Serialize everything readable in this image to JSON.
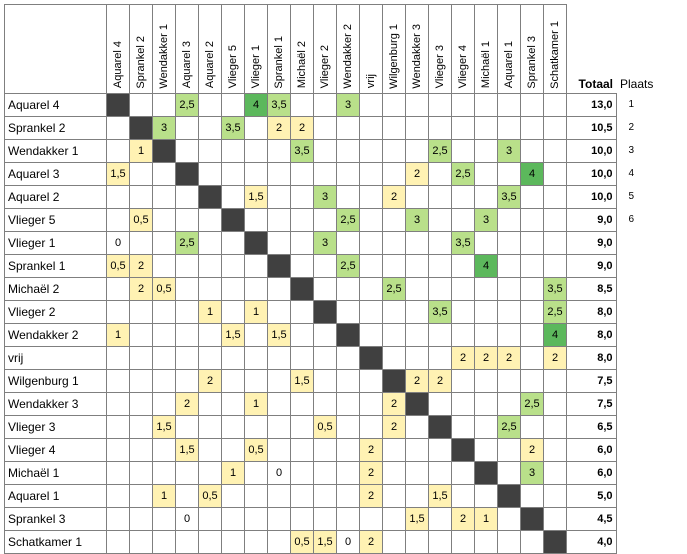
{
  "table": {
    "columns": [
      "Aquarel 4",
      "Sprankel 2",
      "Wendakker 1",
      "Aquarel 3",
      "Aquarel 2",
      "Vlieger 5",
      "Vlieger 1",
      "Sprankel 1",
      "Michaël 2",
      "Vlieger 2",
      "Wendakker 2",
      "vrij",
      "Wilgenburg 1",
      "Wendakker 3",
      "Vlieger 3",
      "Vlieger 4",
      "Michaël 1",
      "Aquarel 1",
      "Sprankel 3",
      "Schatkamer 1"
    ],
    "totaal_label": "Totaal",
    "plaats_label": "Plaats",
    "colors": {
      "diagonal": "#404040",
      "low": "#fff2b3",
      "mid": "#b9e08a",
      "high": "#5cb85c",
      "border": "#7f7f7f"
    },
    "rows": [
      {
        "name": "Aquarel 4",
        "cells": [
          "",
          "",
          "",
          "2,5",
          "",
          "",
          "4",
          "3,5",
          "",
          "",
          "3",
          "",
          "",
          "",
          "",
          "",
          "",
          "",
          "",
          ""
        ],
        "total": "13,0",
        "place": "1"
      },
      {
        "name": "Sprankel 2",
        "cells": [
          "",
          "",
          "3",
          "",
          "",
          "3,5",
          "",
          "2",
          "2",
          "",
          "",
          "",
          "",
          "",
          "",
          "",
          "",
          "",
          "",
          ""
        ],
        "total": "10,5",
        "place": "2"
      },
      {
        "name": "Wendakker 1",
        "cells": [
          "",
          "1",
          "",
          "",
          "",
          "",
          "",
          "",
          "3,5",
          "",
          "",
          "",
          "",
          "",
          "2,5",
          "",
          "",
          "3",
          "",
          ""
        ],
        "total": "10,0",
        "place": "3"
      },
      {
        "name": "Aquarel 3",
        "cells": [
          "1,5",
          "",
          "",
          "",
          "",
          "",
          "",
          "",
          "",
          "",
          "",
          "",
          "",
          "2",
          "",
          "2,5",
          "",
          "",
          "4",
          ""
        ],
        "total": "10,0",
        "place": "4"
      },
      {
        "name": "Aquarel 2",
        "cells": [
          "",
          "",
          "",
          "",
          "",
          "",
          "1,5",
          "",
          "",
          "3",
          "",
          "",
          "2",
          "",
          "",
          "",
          "",
          "3,5",
          "",
          ""
        ],
        "total": "10,0",
        "place": "5"
      },
      {
        "name": "Vlieger 5",
        "cells": [
          "",
          "0,5",
          "",
          "",
          "",
          "",
          "",
          "",
          "",
          "",
          "2,5",
          "",
          "",
          "3",
          "",
          "",
          "3",
          "",
          "",
          ""
        ],
        "total": "9,0",
        "place": "6"
      },
      {
        "name": "Vlieger 1",
        "cells": [
          "0",
          "",
          "",
          "2,5",
          "",
          "",
          "",
          "",
          "",
          "3",
          "",
          "",
          "",
          "",
          "",
          "3,5",
          "",
          "",
          "",
          ""
        ],
        "total": "9,0",
        "place": ""
      },
      {
        "name": "Sprankel 1",
        "cells": [
          "0,5",
          "2",
          "",
          "",
          "",
          "",
          "",
          "",
          "",
          "",
          "2,5",
          "",
          "",
          "",
          "",
          "",
          "4",
          "",
          "",
          ""
        ],
        "total": "9,0",
        "place": ""
      },
      {
        "name": "Michaël 2",
        "cells": [
          "",
          "2",
          "0,5",
          "",
          "",
          "",
          "",
          "",
          "",
          "",
          "",
          "",
          "2,5",
          "",
          "",
          "",
          "",
          "",
          "",
          "3,5"
        ],
        "total": "8,5",
        "place": ""
      },
      {
        "name": "Vlieger 2",
        "cells": [
          "",
          "",
          "",
          "",
          "1",
          "",
          "1",
          "",
          "",
          "",
          "",
          "",
          "",
          "",
          "3,5",
          "",
          "",
          "",
          "",
          "2,5"
        ],
        "total": "8,0",
        "place": ""
      },
      {
        "name": "Wendakker 2",
        "cells": [
          "1",
          "",
          "",
          "",
          "",
          "1,5",
          "",
          "1,5",
          "",
          "",
          "",
          "",
          "",
          "",
          "",
          "",
          "",
          "",
          "",
          "4"
        ],
        "total": "8,0",
        "place": ""
      },
      {
        "name": "vrij",
        "cells": [
          "",
          "",
          "",
          "",
          "",
          "",
          "",
          "",
          "",
          "",
          "",
          "",
          "",
          "",
          "",
          "2",
          "2",
          "2",
          "",
          "2"
        ],
        "total": "8,0",
        "place": ""
      },
      {
        "name": "Wilgenburg 1",
        "cells": [
          "",
          "",
          "",
          "",
          "2",
          "",
          "",
          "",
          "1,5",
          "",
          "",
          "",
          "",
          "2",
          "2",
          "",
          "",
          "",
          "",
          ""
        ],
        "total": "7,5",
        "place": ""
      },
      {
        "name": "Wendakker 3",
        "cells": [
          "",
          "",
          "",
          "2",
          "",
          "",
          "1",
          "",
          "",
          "",
          "",
          "",
          "2",
          "",
          "",
          "",
          "",
          "",
          "2,5",
          ""
        ],
        "total": "7,5",
        "place": ""
      },
      {
        "name": "Vlieger 3",
        "cells": [
          "",
          "",
          "1,5",
          "",
          "",
          "",
          "",
          "",
          "",
          "0,5",
          "",
          "",
          "2",
          "",
          "",
          "",
          "",
          "2,5",
          "",
          ""
        ],
        "total": "6,5",
        "place": ""
      },
      {
        "name": "Vlieger 4",
        "cells": [
          "",
          "",
          "",
          "1,5",
          "",
          "",
          "0,5",
          "",
          "",
          "",
          "",
          "2",
          "",
          "",
          "",
          "",
          "",
          "",
          "2",
          ""
        ],
        "total": "6,0",
        "place": ""
      },
      {
        "name": "Michaël 1",
        "cells": [
          "",
          "",
          "",
          "",
          "",
          "1",
          "",
          "0",
          "",
          "",
          "",
          "2",
          "",
          "",
          "",
          "",
          "",
          "",
          "3",
          ""
        ],
        "total": "6,0",
        "place": ""
      },
      {
        "name": "Aquarel 1",
        "cells": [
          "",
          "",
          "1",
          "",
          "0,5",
          "",
          "",
          "",
          "",
          "",
          "",
          "2",
          "",
          "",
          "1,5",
          "",
          "",
          "",
          "",
          ""
        ],
        "total": "5,0",
        "place": ""
      },
      {
        "name": "Sprankel 3",
        "cells": [
          "",
          "",
          "",
          "0",
          "",
          "",
          "",
          "",
          "",
          "",
          "",
          "",
          "",
          "1,5",
          "",
          "2",
          "1",
          "",
          "",
          ""
        ],
        "total": "4,5",
        "place": ""
      },
      {
        "name": "Schatkamer 1",
        "cells": [
          "",
          "",
          "",
          "",
          "",
          "",
          "",
          "",
          "0,5",
          "1,5",
          "0",
          "2",
          "",
          "",
          "",
          "",
          "",
          "",
          "",
          ""
        ],
        "total": "4,0",
        "place": ""
      }
    ]
  }
}
